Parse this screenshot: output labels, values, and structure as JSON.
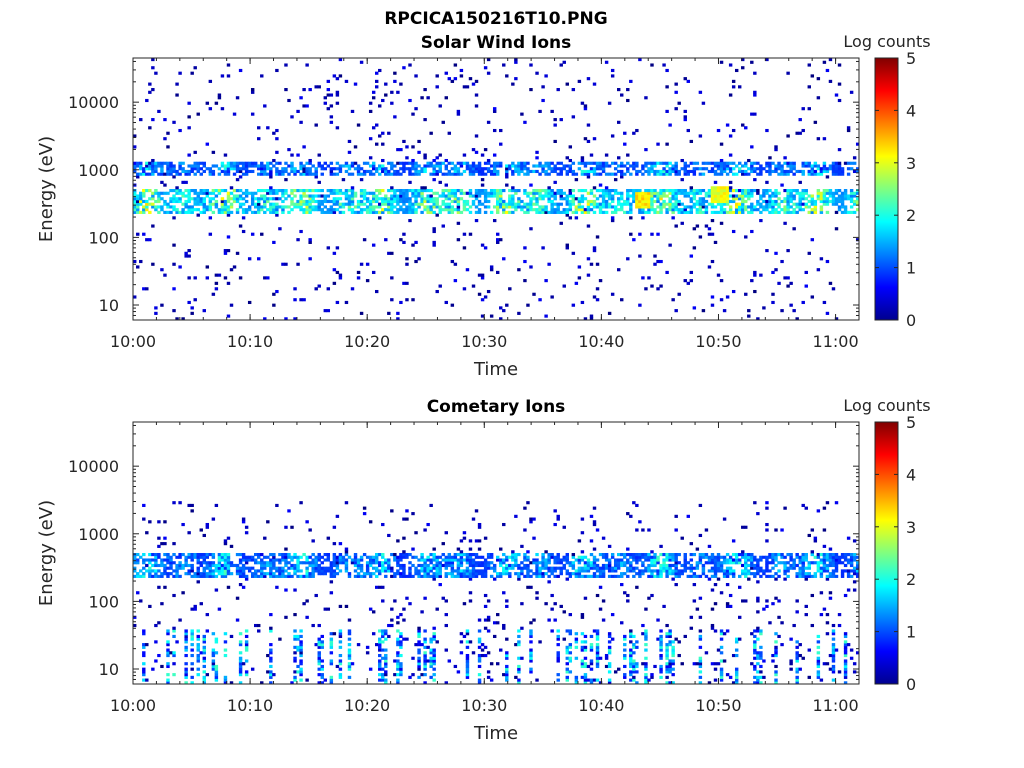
{
  "figure_title": "RPCICA150216T10.PNG",
  "chart_data": [
    {
      "type": "heatmap",
      "title": "Solar Wind Ions",
      "xlabel": "Time",
      "ylabel": "Energy (eV)",
      "x_range": [
        "10:00",
        "11:02"
      ],
      "x_ticks": [
        "10:00",
        "10:10",
        "10:20",
        "10:30",
        "10:40",
        "10:50",
        "11:00"
      ],
      "y_scale": "log",
      "y_range": [
        6,
        45000
      ],
      "y_ticks": [
        "10",
        "100",
        "1000",
        "10000"
      ],
      "colorbar": {
        "label": "Log counts",
        "range": [
          0,
          5
        ],
        "ticks": [
          "0",
          "1",
          "2",
          "3",
          "4",
          "5"
        ],
        "colormap": "jet"
      },
      "features": [
        {
          "kind": "band",
          "energy_eV": 1000,
          "t_start_min": 0,
          "t_end_min": 62,
          "log_counts": [
            0.8,
            2.2
          ]
        },
        {
          "kind": "band",
          "energy_eV": 350,
          "t_start_min": 0,
          "t_end_min": 62,
          "log_counts": [
            1.2,
            3.4
          ]
        },
        {
          "kind": "spot",
          "energy_eV": 350,
          "t_min": 43.5,
          "log_counts": 3.5
        },
        {
          "kind": "spot",
          "energy_eV": 450,
          "t_min": 50.1,
          "log_counts": 3.3
        },
        {
          "kind": "background",
          "energy_range_eV": [
            6,
            45000
          ],
          "log_counts": [
            0,
            0.6
          ]
        }
      ]
    },
    {
      "type": "heatmap",
      "title": "Cometary Ions",
      "xlabel": "Time",
      "ylabel": "Energy (eV)",
      "x_range": [
        "10:00",
        "11:02"
      ],
      "x_ticks": [
        "10:00",
        "10:10",
        "10:20",
        "10:30",
        "10:40",
        "10:50",
        "11:00"
      ],
      "y_scale": "log",
      "y_range": [
        6,
        45000
      ],
      "y_ticks": [
        "10",
        "100",
        "1000",
        "10000"
      ],
      "colorbar": {
        "label": "Log counts",
        "range": [
          0,
          5
        ],
        "ticks": [
          "0",
          "1",
          "2",
          "3",
          "4",
          "5"
        ],
        "colormap": "jet"
      },
      "features": [
        {
          "kind": "band",
          "energy_eV": 350,
          "t_start_min": 0,
          "t_end_min": 62,
          "log_counts": [
            0.8,
            2.3
          ]
        },
        {
          "kind": "columns",
          "energy_range_eV": [
            6,
            40
          ],
          "log_counts": [
            0.5,
            2.2
          ]
        },
        {
          "kind": "background",
          "energy_range_eV": [
            6,
            3000
          ],
          "log_counts": [
            0,
            0.6
          ]
        }
      ]
    }
  ]
}
